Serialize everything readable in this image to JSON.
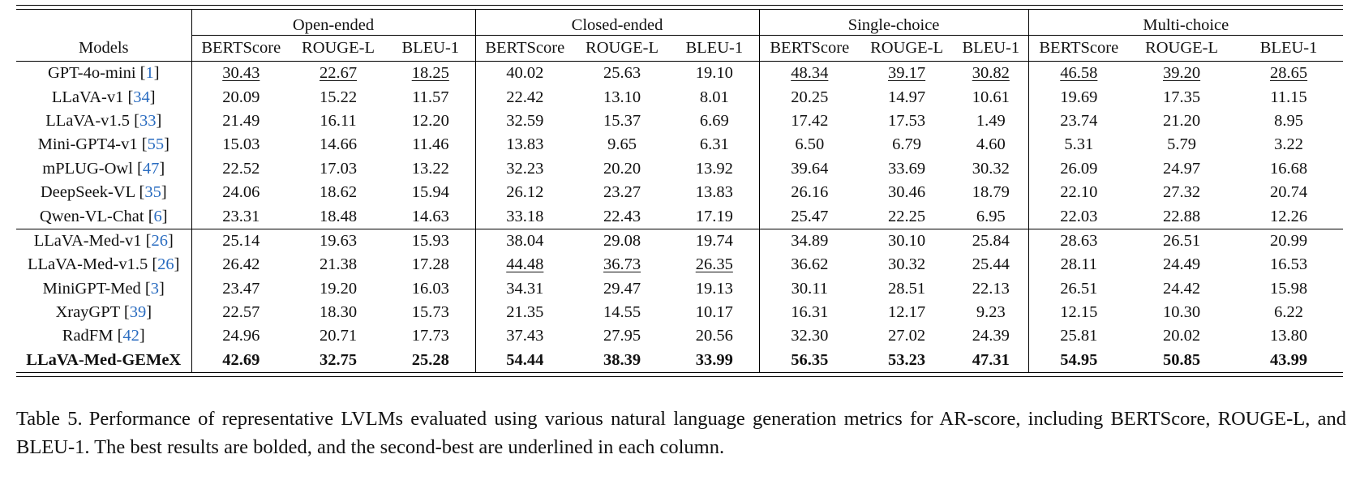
{
  "table": {
    "models_header": "Models",
    "groups": [
      "Open-ended",
      "Closed-ended",
      "Single-choice",
      "Multi-choice"
    ],
    "metrics": [
      "BERTScore",
      "ROUGE-L",
      "BLEU-1"
    ],
    "rows": [
      {
        "name": "GPT-4o-mini",
        "cite": "1",
        "vals": [
          "30.43",
          "22.67",
          "18.25",
          "40.02",
          "25.63",
          "19.10",
          "48.34",
          "39.17",
          "30.82",
          "46.58",
          "39.20",
          "28.65"
        ],
        "underline": [
          0,
          1,
          2,
          6,
          7,
          8,
          9,
          10,
          11
        ]
      },
      {
        "name": "LLaVA-v1",
        "cite": "34",
        "vals": [
          "20.09",
          "15.22",
          "11.57",
          "22.42",
          "13.10",
          "8.01",
          "20.25",
          "14.97",
          "10.61",
          "19.69",
          "17.35",
          "11.15"
        ],
        "underline": []
      },
      {
        "name": "LLaVA-v1.5",
        "cite": "33",
        "vals": [
          "21.49",
          "16.11",
          "12.20",
          "32.59",
          "15.37",
          "6.69",
          "17.42",
          "17.53",
          "1.49",
          "23.74",
          "21.20",
          "8.95"
        ],
        "underline": []
      },
      {
        "name": "Mini-GPT4-v1",
        "cite": "55",
        "vals": [
          "15.03",
          "14.66",
          "11.46",
          "13.83",
          "9.65",
          "6.31",
          "6.50",
          "6.79",
          "4.60",
          "5.31",
          "5.79",
          "3.22"
        ],
        "underline": []
      },
      {
        "name": "mPLUG-Owl",
        "cite": "47",
        "vals": [
          "22.52",
          "17.03",
          "13.22",
          "32.23",
          "20.20",
          "13.92",
          "39.64",
          "33.69",
          "30.32",
          "26.09",
          "24.97",
          "16.68"
        ],
        "underline": []
      },
      {
        "name": "DeepSeek-VL",
        "cite": "35",
        "vals": [
          "24.06",
          "18.62",
          "15.94",
          "26.12",
          "23.27",
          "13.83",
          "26.16",
          "30.46",
          "18.79",
          "22.10",
          "27.32",
          "20.74"
        ],
        "underline": []
      },
      {
        "name": "Qwen-VL-Chat",
        "cite": "6",
        "vals": [
          "23.31",
          "18.48",
          "14.63",
          "33.18",
          "22.43",
          "17.19",
          "25.47",
          "22.25",
          "6.95",
          "22.03",
          "22.88",
          "12.26"
        ],
        "underline": []
      },
      {
        "name": "LLaVA-Med-v1",
        "cite": "26",
        "vals": [
          "25.14",
          "19.63",
          "15.93",
          "38.04",
          "29.08",
          "19.74",
          "34.89",
          "30.10",
          "25.84",
          "28.63",
          "26.51",
          "20.99"
        ],
        "underline": []
      },
      {
        "name": "LLaVA-Med-v1.5",
        "cite": "26",
        "vals": [
          "26.42",
          "21.38",
          "17.28",
          "44.48",
          "36.73",
          "26.35",
          "36.62",
          "30.32",
          "25.44",
          "28.11",
          "24.49",
          "16.53"
        ],
        "underline": [
          3,
          4,
          5
        ]
      },
      {
        "name": "MiniGPT-Med",
        "cite": "3",
        "vals": [
          "23.47",
          "19.20",
          "16.03",
          "34.31",
          "29.47",
          "19.13",
          "30.11",
          "28.51",
          "22.13",
          "26.51",
          "24.42",
          "15.98"
        ],
        "underline": []
      },
      {
        "name": "XrayGPT",
        "cite": "39",
        "vals": [
          "22.57",
          "18.30",
          "15.73",
          "21.35",
          "14.55",
          "10.17",
          "16.31",
          "12.17",
          "9.23",
          "12.15",
          "10.30",
          "6.22"
        ],
        "underline": []
      },
      {
        "name": "RadFM",
        "cite": "42",
        "vals": [
          "24.96",
          "20.71",
          "17.73",
          "37.43",
          "27.95",
          "20.56",
          "32.30",
          "27.02",
          "24.39",
          "25.81",
          "20.02",
          "13.80"
        ],
        "underline": []
      },
      {
        "name": "LLaVA-Med-GEMeX",
        "cite": "",
        "vals": [
          "42.69",
          "32.75",
          "25.28",
          "54.44",
          "38.39",
          "33.99",
          "56.35",
          "53.23",
          "47.31",
          "54.95",
          "50.85",
          "43.99"
        ],
        "underline": [],
        "bold": true
      }
    ]
  },
  "caption": {
    "label": "Table 5.",
    "text": "Performance of representative LVLMs evaluated using various natural language generation metrics for AR-score, including BERTScore, ROUGE-L, and BLEU-1. The best results are bolded, and the second-best are underlined in each column."
  }
}
